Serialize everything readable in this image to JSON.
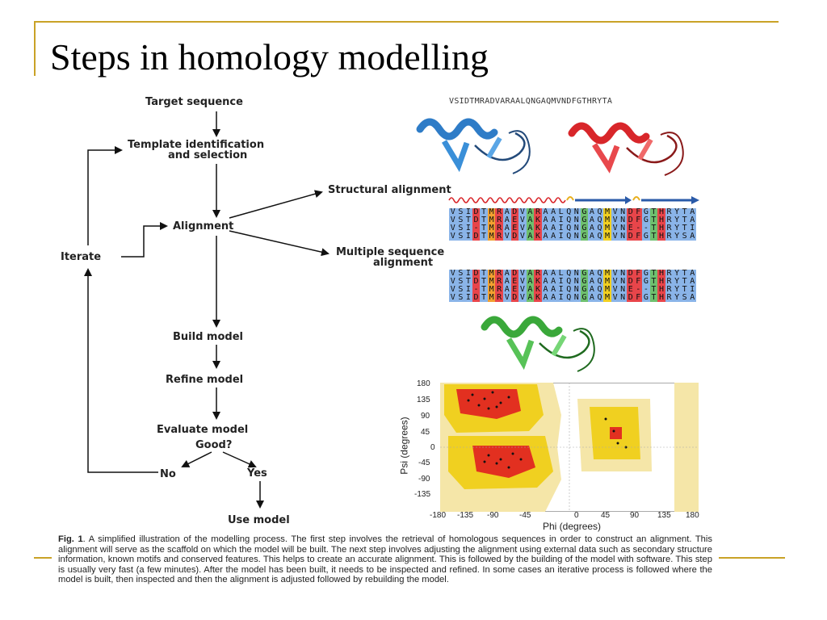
{
  "slide": {
    "title": "Steps in homology modelling",
    "accent_color": "#c9a227"
  },
  "flowchart": {
    "target_sequence": "Target sequence",
    "template_line1": "Template identification",
    "template_line2": "and selection",
    "alignment": "Alignment",
    "structural_alignment": "Structural alignment",
    "msa_line1": "Multiple sequence",
    "msa_line2": "alignment",
    "iterate": "Iterate",
    "build_model": "Build model",
    "refine_model": "Refine model",
    "evaluate_model": "Evaluate model",
    "good": "Good?",
    "no": "No",
    "yes": "Yes",
    "use_model": "Use model"
  },
  "sequence_top": "VSIDTMRADVARAALQNGAQMVNDFGTHRYTA",
  "alignment_rows": [
    "VSIDTMRADVARAALQNGAQMVNDFGTHRYTA",
    "VSTDTMRAEVAKAAIQNGAQMVNDFGTHRYTA",
    "VSI-TMRAEVAKAAIQNGAQMVNE--THRYTI",
    "VSIDTMRVDVAKAAIQNGAQMVNDFGTHRYSA"
  ],
  "ramachandran": {
    "x_ticks": [
      "-180",
      "-135",
      "-90",
      "-45",
      "0",
      "45",
      "90",
      "135",
      "180"
    ],
    "y_ticks": [
      "180",
      "135",
      "90",
      "45",
      "0",
      "-45",
      "-90",
      "-135"
    ],
    "xlabel": "Phi (degrees)",
    "ylabel": "Psi (degrees)"
  },
  "caption": {
    "prefix": "Fig. 1",
    "text": ". A simplified illustration of the modelling process. The first step involves the retrieval of homologous sequences in order to construct an alignment. This alignment will serve as the scaffold on which the model will be built. The next step involves adjusting the alignment using external data such as secondary structure information, known motifs and conserved features. This helps to create an accurate alignment. This is followed by the building of the model with software. This step is usually very fast (a few minutes). After the model has been built, it needs to be inspected and refined. In some cases an iterative process is followed where the model is built, then inspected and then the alignment is adjusted followed by rebuilding the model."
  }
}
